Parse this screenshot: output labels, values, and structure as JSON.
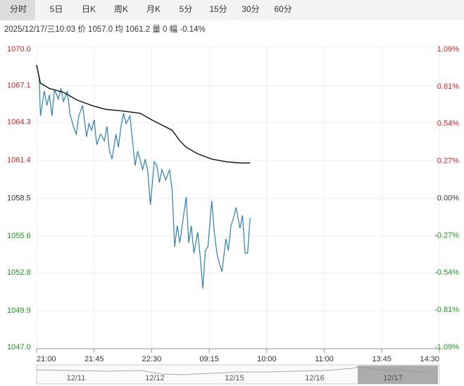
{
  "tabs": [
    "分时",
    "5日",
    "日K",
    "周K",
    "月K",
    "5分",
    "15分",
    "30分",
    "60分"
  ],
  "info": "2025/12/17/三10:03  价 1057.0  均 1061.2  量 0  幅 -0.14%",
  "chart_data": {
    "type": "line",
    "xlim": [
      0,
      315
    ],
    "xticks": [
      {
        "value": 0,
        "label": "21:00"
      },
      {
        "value": 45,
        "label": "21:45"
      },
      {
        "value": 90,
        "label": "22:30"
      },
      {
        "value": 135,
        "label": "09:15"
      },
      {
        "value": 180,
        "label": "10:00"
      },
      {
        "value": 225,
        "label": "11:00"
      },
      {
        "value": 270,
        "label": "13:45"
      },
      {
        "value": 315,
        "label": "14:30"
      }
    ],
    "ylim": [
      1047.0,
      1070.0
    ],
    "yticks": [
      {
        "value": 1070.0,
        "label": "1070.0"
      },
      {
        "value": 1067.1,
        "label": "1067.1"
      },
      {
        "value": 1064.3,
        "label": "1064.3"
      },
      {
        "value": 1061.4,
        "label": "1061.4"
      },
      {
        "value": 1058.5,
        "label": "1058.5"
      },
      {
        "value": 1055.6,
        "label": "1055.6"
      },
      {
        "value": 1052.8,
        "label": "1052.8"
      },
      {
        "value": 1049.9,
        "label": "1049.9"
      },
      {
        "value": 1047.0,
        "label": "1047.0"
      }
    ],
    "y2lim": [
      -1.09,
      1.09
    ],
    "y2ticks": [
      {
        "value": 1.09,
        "label": "1.09%"
      },
      {
        "value": 0.81,
        "label": "0.81%"
      },
      {
        "value": 0.54,
        "label": "0.54%"
      },
      {
        "value": 0.27,
        "label": "0.27%"
      },
      {
        "value": 0,
        "label": "0.00%"
      },
      {
        "value": -0.27,
        "label": "-0.27%"
      },
      {
        "value": -0.54,
        "label": "-0.54%"
      },
      {
        "value": -0.81,
        "label": "-0.81%"
      },
      {
        "value": -1.09,
        "label": "-1.09%"
      }
    ],
    "up_color": "#e02020",
    "down_color": "#1a9a1a",
    "flat_color": "#333333",
    "grid": true,
    "series": [
      {
        "name": "价",
        "color": "#2a80b9",
        "x": [
          0,
          2,
          3,
          6,
          8,
          10,
          12,
          14,
          17,
          19,
          21,
          24,
          26,
          29,
          31,
          33,
          36,
          39,
          41,
          43,
          45,
          47,
          50,
          53,
          55,
          57,
          59,
          62,
          64,
          66,
          68,
          70,
          73,
          75,
          77,
          79,
          83,
          85,
          87,
          89,
          92,
          94,
          96,
          98,
          101,
          104,
          106,
          108,
          110,
          112,
          115,
          117,
          119,
          121,
          123,
          126,
          128,
          130,
          132,
          134,
          137,
          139,
          141,
          143,
          145,
          148,
          150,
          152,
          154,
          156,
          159,
          161,
          163,
          165,
          167
        ],
        "values": [
          1068.7,
          1067.7,
          1064.8,
          1066.7,
          1065.6,
          1066.4,
          1064.8,
          1066.8,
          1066.1,
          1066.9,
          1065.9,
          1066.7,
          1065.0,
          1063.9,
          1063.4,
          1064.8,
          1065.6,
          1063.2,
          1064.2,
          1063.7,
          1064.5,
          1062.6,
          1063.4,
          1062.9,
          1064.0,
          1062.1,
          1061.5,
          1063.4,
          1062.4,
          1064.0,
          1065.0,
          1064.2,
          1064.8,
          1062.9,
          1061.0,
          1062.1,
          1060.7,
          1061.5,
          1060.5,
          1058.0,
          1061.3,
          1061.0,
          1059.7,
          1060.7,
          1059.9,
          1060.7,
          1059.1,
          1054.8,
          1056.4,
          1055.1,
          1057.2,
          1058.6,
          1055.1,
          1056.4,
          1054.3,
          1055.9,
          1054.0,
          1051.6,
          1054.5,
          1054.8,
          1058.3,
          1055.9,
          1054.3,
          1053.5,
          1052.9,
          1055.4,
          1054.5,
          1056.4,
          1057.0,
          1057.8,
          1056.2,
          1057.2,
          1054.3,
          1054.3,
          1057.0
        ]
      },
      {
        "name": "均",
        "color": "#111111",
        "x": [
          0,
          3,
          10,
          21,
          32,
          43,
          54,
          65,
          81,
          90,
          98,
          106,
          112,
          117,
          126,
          137,
          148,
          159,
          167
        ],
        "values": [
          1068.7,
          1067.3,
          1066.9,
          1066.6,
          1066.0,
          1065.6,
          1065.3,
          1065.2,
          1065.0,
          1064.5,
          1064.1,
          1063.7,
          1062.9,
          1062.4,
          1061.9,
          1061.5,
          1061.3,
          1061.2,
          1061.2
        ]
      }
    ]
  },
  "navigator": {
    "labels": [
      "12/11",
      "12/12",
      "12/15",
      "12/16",
      "12/17"
    ]
  }
}
